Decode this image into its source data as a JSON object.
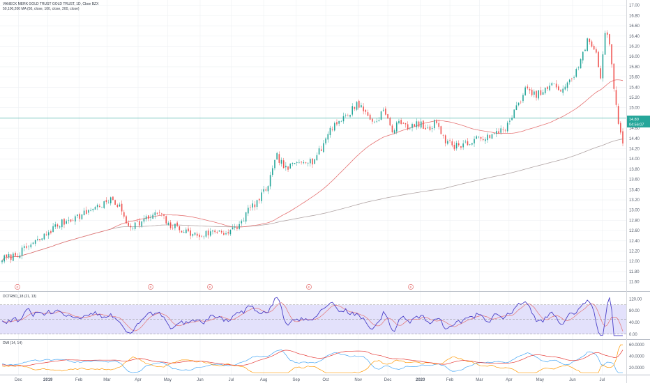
{
  "header": {
    "title": "VANECK MERK GOLD TRUST GOLD TRUST, 1D, Cboe BZX",
    "ma_legend": "50,100,200 MA (50, close, 100, close, 200, close)"
  },
  "price_tag": {
    "value": "14.80",
    "countdown": "04:56:07"
  },
  "indicator1_title": "DCTRBO_18 (21, 13)",
  "indicator2_title": "DMI (14, 14)",
  "colors": {
    "up": "#26a69a",
    "down": "#ef5350",
    "ma_fast": "#e57373",
    "ma_slow": "#b0a4a4",
    "osc": "#4a3fc8",
    "osc_signal": "#e57373",
    "band": "#e3e1fb",
    "dmi_plus": "#42a5f5",
    "dmi_minus": "#ff9800",
    "adx": "#e53935",
    "grid": "#eef0f3"
  },
  "chart_data": [
    {
      "type": "candlestick",
      "title": "VANECK MERK GOLD TRUST GOLD TRUST, 1D, Cboe BZX",
      "x_ticks": [
        "Dec",
        "2019",
        "Feb",
        "Mar",
        "Apr",
        "May",
        "Jun",
        "Jul",
        "Aug",
        "Sep",
        "Oct",
        "Nov",
        "Dec",
        "2020",
        "Feb",
        "Mar",
        "Apr",
        "May",
        "Jun",
        "Jul"
      ],
      "y_ticks": [
        "17.00",
        "16.80",
        "16.60",
        "16.40",
        "16.20",
        "16.00",
        "15.80",
        "15.60",
        "15.40",
        "15.20",
        "15.00",
        "14.80",
        "14.60",
        "14.40",
        "14.20",
        "14.00",
        "13.80",
        "13.60",
        "13.40",
        "13.20",
        "13.00",
        "12.80",
        "12.60",
        "12.40",
        "12.20",
        "12.00",
        "11.80",
        "11.60"
      ],
      "ylim": [
        11.5,
        17.05
      ],
      "last_price": 14.8,
      "close_path": [
        {
          "x": 0,
          "y": 12.05
        },
        {
          "x": 5,
          "y": 12.1
        },
        {
          "x": 9,
          "y": 12.2
        },
        {
          "x": 14,
          "y": 12.35
        },
        {
          "x": 18,
          "y": 12.45
        },
        {
          "x": 23,
          "y": 12.65
        },
        {
          "x": 27,
          "y": 12.75
        },
        {
          "x": 32,
          "y": 12.85
        },
        {
          "x": 36,
          "y": 12.9
        },
        {
          "x": 41,
          "y": 13.05
        },
        {
          "x": 45,
          "y": 13.1
        },
        {
          "x": 50,
          "y": 13.2
        },
        {
          "x": 53,
          "y": 13.05
        },
        {
          "x": 57,
          "y": 12.7
        },
        {
          "x": 62,
          "y": 12.75
        },
        {
          "x": 66,
          "y": 12.85
        },
        {
          "x": 71,
          "y": 12.95
        },
        {
          "x": 75,
          "y": 12.7
        },
        {
          "x": 80,
          "y": 12.65
        },
        {
          "x": 84,
          "y": 12.55
        },
        {
          "x": 89,
          "y": 12.5
        },
        {
          "x": 93,
          "y": 12.55
        },
        {
          "x": 98,
          "y": 12.6
        },
        {
          "x": 102,
          "y": 12.55
        },
        {
          "x": 107,
          "y": 12.7
        },
        {
          "x": 111,
          "y": 13.0
        },
        {
          "x": 116,
          "y": 13.2
        },
        {
          "x": 120,
          "y": 13.5
        },
        {
          "x": 124,
          "y": 14.05
        },
        {
          "x": 128,
          "y": 13.8
        },
        {
          "x": 132,
          "y": 13.9
        },
        {
          "x": 136,
          "y": 14.0
        },
        {
          "x": 140,
          "y": 13.95
        },
        {
          "x": 144,
          "y": 14.2
        },
        {
          "x": 148,
          "y": 14.6
        },
        {
          "x": 152,
          "y": 14.75
        },
        {
          "x": 156,
          "y": 14.85
        },
        {
          "x": 160,
          "y": 15.1
        },
        {
          "x": 164,
          "y": 14.9
        },
        {
          "x": 168,
          "y": 14.7
        },
        {
          "x": 172,
          "y": 14.95
        },
        {
          "x": 176,
          "y": 14.55
        },
        {
          "x": 180,
          "y": 14.75
        },
        {
          "x": 184,
          "y": 14.6
        },
        {
          "x": 188,
          "y": 14.7
        },
        {
          "x": 192,
          "y": 14.55
        },
        {
          "x": 196,
          "y": 14.75
        },
        {
          "x": 200,
          "y": 14.35
        },
        {
          "x": 204,
          "y": 14.25
        },
        {
          "x": 208,
          "y": 14.3
        },
        {
          "x": 212,
          "y": 14.3
        },
        {
          "x": 216,
          "y": 14.45
        },
        {
          "x": 220,
          "y": 14.4
        },
        {
          "x": 224,
          "y": 14.55
        },
        {
          "x": 228,
          "y": 14.65
        },
        {
          "x": 232,
          "y": 15.0
        },
        {
          "x": 236,
          "y": 15.35
        },
        {
          "x": 240,
          "y": 15.25
        },
        {
          "x": 244,
          "y": 15.3
        },
        {
          "x": 248,
          "y": 15.45
        },
        {
          "x": 252,
          "y": 15.35
        },
        {
          "x": 256,
          "y": 15.5
        },
        {
          "x": 260,
          "y": 15.8
        },
        {
          "x": 264,
          "y": 16.3
        },
        {
          "x": 268,
          "y": 16.1
        },
        {
          "x": 270,
          "y": 15.6
        },
        {
          "x": 272,
          "y": 16.5
        },
        {
          "x": 274,
          "y": 16.3
        },
        {
          "x": 276,
          "y": 15.3
        },
        {
          "x": 278,
          "y": 14.75
        },
        {
          "x": 280,
          "y": 14.25
        }
      ]
    },
    {
      "type": "line",
      "title": "DCTRBO_18 (21, 13)",
      "y_ticks": [
        "120.00",
        "80.00",
        "40.00",
        "0.00"
      ],
      "ylim": [
        -10,
        135
      ]
    },
    {
      "type": "line",
      "title": "DMI (14, 14)",
      "y_ticks": [
        "60.0000",
        "40.0000",
        "20.0000"
      ],
      "ylim": [
        10,
        65
      ]
    }
  ]
}
